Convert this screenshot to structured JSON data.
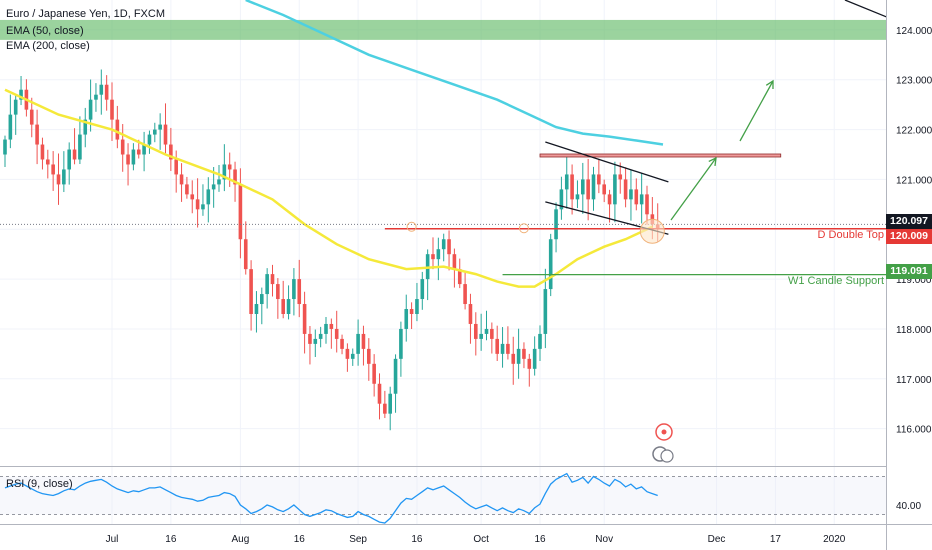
{
  "legend": {
    "title": "Euro / Japanese Yen, 1D, FXCM",
    "ema50": "EMA (50, close)",
    "ema200": "EMA (200, close)",
    "rsi": "RSI (9, close)"
  },
  "price_tags": {
    "last": "120.097",
    "double_top": "120.009",
    "support": "119.091"
  },
  "annotations": {
    "double_top_label": "D Double Top",
    "support_label": "W1 Candle Support"
  },
  "colors": {
    "up": "#26a69a",
    "down": "#ef5350",
    "ema50": "#f5e93a",
    "ema200": "#4dd0e1",
    "zone": "#66bb6a",
    "resistance": "#e53935",
    "support": "#43a047",
    "arrow": "#43a047",
    "rsi": "#2196f3",
    "text": "#131722"
  },
  "chart_data": [
    {
      "type": "candlestick",
      "title": "Euro / Japanese Yen, 1D, FXCM",
      "ylim": [
        115.25,
        124.6
      ],
      "y_ticks": [
        116.0,
        117.0,
        118.0,
        119.0,
        120.0,
        121.0,
        122.0,
        123.0,
        124.0
      ],
      "y_tick_labels": [
        "116.000",
        "117.000",
        "118.000",
        "119.000",
        "120.000",
        "121.000",
        "122.000",
        "123.000",
        "124.000"
      ],
      "x_ticks": [
        {
          "label": "Jul",
          "i": 20
        },
        {
          "label": "16",
          "i": 31
        },
        {
          "label": "Aug",
          "i": 44
        },
        {
          "label": "16",
          "i": 55
        },
        {
          "label": "Sep",
          "i": 66
        },
        {
          "label": "16",
          "i": 77
        },
        {
          "label": "Oct",
          "i": 89
        },
        {
          "label": "16",
          "i": 100
        },
        {
          "label": "Nov",
          "i": 112
        },
        {
          "label": "Dec",
          "i": 133
        },
        {
          "label": "17",
          "i": 144
        },
        {
          "label": "2020",
          "i": 155
        }
      ],
      "closes": [
        121.8,
        122.3,
        122.6,
        122.8,
        122.4,
        122.1,
        121.7,
        121.4,
        121.3,
        121.1,
        120.9,
        121.2,
        121.6,
        121.4,
        121.9,
        122.2,
        122.6,
        122.7,
        122.9,
        122.6,
        122.2,
        121.8,
        121.5,
        121.3,
        121.6,
        121.5,
        121.7,
        121.9,
        122.0,
        122.1,
        121.7,
        121.4,
        121.1,
        120.9,
        120.7,
        120.6,
        120.4,
        120.5,
        120.8,
        120.9,
        121.0,
        121.3,
        121.2,
        120.9,
        119.8,
        119.2,
        118.3,
        118.5,
        118.7,
        119.1,
        118.9,
        118.6,
        118.3,
        118.6,
        119.0,
        118.5,
        117.9,
        117.7,
        117.8,
        117.9,
        118.1,
        118.0,
        117.8,
        117.6,
        117.4,
        117.5,
        117.9,
        117.6,
        117.3,
        116.9,
        116.5,
        116.3,
        116.7,
        117.4,
        118.0,
        118.4,
        118.3,
        118.6,
        119.0,
        119.5,
        119.4,
        119.6,
        119.8,
        119.5,
        119.2,
        118.9,
        118.5,
        118.1,
        117.8,
        117.9,
        118.0,
        117.8,
        117.5,
        117.7,
        117.5,
        117.3,
        117.6,
        117.4,
        117.2,
        117.6,
        117.9,
        118.8,
        119.8,
        120.4,
        120.8,
        121.1,
        120.6,
        120.7,
        121.0,
        120.6,
        121.1,
        120.9,
        120.7,
        120.5,
        121.1,
        121.0,
        120.6,
        120.8,
        120.5,
        120.7,
        120.3,
        120.1,
        120.0
      ],
      "ema50_label": "EMA (50, close)",
      "ema200_label": "EMA (200, close)",
      "ema50_path": [
        [
          0,
          122.8
        ],
        [
          10,
          122.3
        ],
        [
          20,
          122.0
        ],
        [
          30,
          121.5
        ],
        [
          40,
          121.1
        ],
        [
          44,
          120.9
        ],
        [
          50,
          120.6
        ],
        [
          56,
          120.1
        ],
        [
          62,
          119.7
        ],
        [
          68,
          119.4
        ],
        [
          75,
          119.2
        ],
        [
          82,
          119.25
        ],
        [
          88,
          119.1
        ],
        [
          92,
          118.95
        ],
        [
          96,
          118.85
        ],
        [
          99,
          118.85
        ],
        [
          103,
          119.1
        ],
        [
          107,
          119.4
        ],
        [
          112,
          119.65
        ],
        [
          116,
          119.8
        ],
        [
          121,
          120.05
        ]
      ],
      "ema200_path": [
        [
          45,
          124.6
        ],
        [
          52,
          124.3
        ],
        [
          60,
          123.9
        ],
        [
          68,
          123.5
        ],
        [
          76,
          123.2
        ],
        [
          84,
          122.9
        ],
        [
          92,
          122.6
        ],
        [
          98,
          122.3
        ],
        [
          103,
          122.05
        ],
        [
          108,
          121.92
        ],
        [
          113,
          121.86
        ],
        [
          118,
          121.78
        ],
        [
          123,
          121.7
        ]
      ],
      "resistance_zone": [
        123.8,
        124.2
      ],
      "resistance_line": 121.48,
      "double_top_level": 120.01,
      "support_level": 119.09,
      "last_price": 120.097
    },
    {
      "type": "line",
      "title": "RSI (9, close)",
      "ylim": [
        20,
        80
      ],
      "y_ticks": [
        40
      ],
      "y_tick_labels": [
        "40.00"
      ],
      "bands": [
        30,
        70
      ],
      "values": [
        58,
        60,
        62,
        63,
        60,
        57,
        54,
        52,
        51,
        50,
        52,
        55,
        57,
        56,
        60,
        63,
        65,
        66,
        67,
        64,
        60,
        57,
        55,
        53,
        55,
        54,
        56,
        58,
        58,
        59,
        56,
        53,
        50,
        48,
        47,
        46,
        44,
        45,
        48,
        49,
        50,
        53,
        52,
        49,
        40,
        36,
        31,
        33,
        36,
        40,
        38,
        35,
        33,
        36,
        40,
        35,
        30,
        28,
        30,
        32,
        35,
        34,
        31,
        29,
        27,
        28,
        33,
        30,
        28,
        25,
        22,
        21,
        26,
        34,
        42,
        47,
        46,
        50,
        54,
        58,
        56,
        58,
        60,
        56,
        52,
        48,
        43,
        39,
        36,
        38,
        40,
        37,
        34,
        37,
        34,
        32,
        36,
        34,
        31,
        37,
        41,
        52,
        62,
        67,
        70,
        73,
        64,
        66,
        69,
        63,
        70,
        67,
        63,
        60,
        67,
        64,
        59,
        62,
        57,
        59,
        54,
        52,
        50
      ]
    }
  ]
}
